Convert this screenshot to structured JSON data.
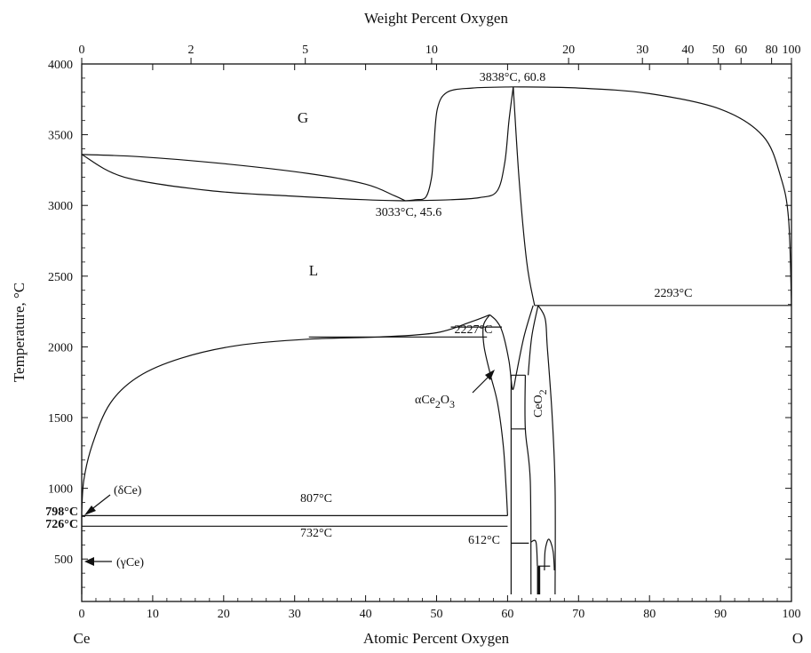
{
  "chart_data": {
    "type": "line",
    "title": "",
    "xlabel": "Atomic Percent Oxygen",
    "x2label": "Weight Percent Oxygen",
    "ylabel": "Temperature, °C",
    "xlim": [
      0,
      100
    ],
    "ylim": [
      200,
      4000
    ],
    "x_ticks": [
      "0",
      "10",
      "20",
      "30",
      "40",
      "50",
      "60",
      "70",
      "80",
      "90",
      "100"
    ],
    "y_ticks": [
      "500",
      "1000",
      "1500",
      "2000",
      "2500",
      "3000",
      "3500",
      "4000"
    ],
    "x2_ticks": [
      {
        "label": "0",
        "at": 0
      },
      {
        "label": "2",
        "at": 15.4
      },
      {
        "label": "5",
        "at": 31.5
      },
      {
        "label": "10",
        "at": 49.3
      },
      {
        "label": "20",
        "at": 68.6
      },
      {
        "label": "30",
        "at": 79.0
      },
      {
        "label": "40",
        "at": 85.4
      },
      {
        "label": "50",
        "at": 89.7
      },
      {
        "label": "60",
        "at": 92.9
      },
      {
        "label": "80",
        "at": 97.2
      },
      {
        "label": "100",
        "at": 100
      }
    ],
    "end_labels": {
      "left": "Ce",
      "right": "O"
    },
    "regions": [
      {
        "label": "G",
        "x": 30.5,
        "y": 3600
      },
      {
        "label": "L",
        "x": 32.5,
        "y": 2500
      }
    ],
    "annotations": {
      "max_point": "3838°C, 60.8",
      "min_point": "3033°C, 45.6",
      "peak_2227": "2227°C",
      "line_2293": "2293°C",
      "line_807": "807°C",
      "line_732": "732°C",
      "t_612": "612°C",
      "t_798": "798°C",
      "t_726": "726°C",
      "delta_ce": "(δCe)",
      "gamma_ce": "(γCe)",
      "ce2o3_prefix": "αCe",
      "ce2o3_sub1": "2",
      "ce2o3_mid": "O",
      "ce2o3_sub2": "3",
      "ceo2": "CeO",
      "ceo2_sub": "2"
    },
    "series": [
      {
        "values": [
          [
            0,
            3360
          ],
          [
            8,
            3345
          ],
          [
            20,
            3295
          ],
          [
            32,
            3225
          ],
          [
            40,
            3150
          ],
          [
            44,
            3070
          ],
          [
            45.6,
            3033
          ]
        ]
      },
      {
        "values": [
          [
            0,
            3360
          ],
          [
            6,
            3200
          ],
          [
            18,
            3105
          ],
          [
            30,
            3065
          ],
          [
            40,
            3040
          ],
          [
            45.6,
            3033
          ]
        ]
      },
      {
        "values": [
          [
            45.6,
            3033
          ],
          [
            52,
            3040
          ],
          [
            56,
            3055
          ],
          [
            58.5,
            3100
          ],
          [
            59.6,
            3300
          ],
          [
            60.2,
            3600
          ],
          [
            60.8,
            3838
          ]
        ]
      },
      {
        "values": [
          [
            45.6,
            3033
          ],
          [
            47,
            3040
          ],
          [
            48.5,
            3060
          ],
          [
            49.3,
            3200
          ],
          [
            49.6,
            3400
          ],
          [
            50.1,
            3680
          ],
          [
            51.5,
            3800
          ],
          [
            55,
            3830
          ],
          [
            60.8,
            3838
          ]
        ]
      },
      {
        "values": [
          [
            60.8,
            3838
          ],
          [
            70,
            3830
          ],
          [
            80,
            3790
          ],
          [
            90,
            3680
          ],
          [
            96,
            3490
          ],
          [
            98.5,
            3200
          ],
          [
            99.6,
            2900
          ],
          [
            100,
            2293
          ]
        ]
      },
      {
        "values": [
          [
            60.8,
            3838
          ],
          [
            61.6,
            3200
          ],
          [
            62.7,
            2600
          ],
          [
            63.8,
            2293
          ]
        ]
      },
      {
        "values": [
          [
            63.8,
            2293
          ],
          [
            100,
            2293
          ]
        ]
      },
      {
        "values": [
          [
            0,
            830
          ],
          [
            0.3,
            1060
          ],
          [
            1.5,
            1310
          ],
          [
            4,
            1600
          ],
          [
            8,
            1790
          ],
          [
            14,
            1920
          ],
          [
            22,
            2010
          ],
          [
            32,
            2055
          ],
          [
            42,
            2070
          ],
          [
            50,
            2100
          ],
          [
            55,
            2180
          ],
          [
            57.5,
            2227
          ]
        ]
      },
      {
        "values": [
          [
            57.5,
            2227
          ],
          [
            58.5,
            2180
          ],
          [
            59.3,
            2100
          ],
          [
            60.2,
            1900
          ],
          [
            60.7,
            1700
          ],
          [
            61.2,
            1800
          ]
        ]
      },
      {
        "values": [
          [
            57.5,
            2227
          ],
          [
            56.6,
            2150
          ],
          [
            56.7,
            2000
          ],
          [
            57.6,
            1800
          ],
          [
            58.6,
            1600
          ],
          [
            59.4,
            1300
          ],
          [
            59.8,
            1000
          ],
          [
            60,
            807
          ]
        ]
      },
      {
        "values": [
          [
            32,
            2070
          ],
          [
            57.1,
            2070
          ]
        ]
      },
      {
        "values": [
          [
            52,
            2140
          ],
          [
            59.2,
            2140
          ]
        ]
      },
      {
        "values": [
          [
            61.2,
            1800
          ],
          [
            62.3,
            2070
          ],
          [
            63.6,
            2293
          ]
        ]
      },
      {
        "values": [
          [
            64.3,
            2293
          ],
          [
            63.4,
            2070
          ],
          [
            62.9,
            1800
          ]
        ]
      },
      {
        "values": [
          [
            64.3,
            2293
          ],
          [
            65.3,
            2200
          ],
          [
            65.6,
            2000
          ],
          [
            66.3,
            1500
          ],
          [
            66.7,
            1000
          ],
          [
            66.7,
            250
          ]
        ]
      },
      {
        "values": [
          [
            0,
            807
          ],
          [
            60,
            807
          ]
        ]
      },
      {
        "values": [
          [
            0,
            732
          ],
          [
            60,
            732
          ]
        ]
      },
      {
        "values": [
          [
            60.5,
            1800
          ],
          [
            60.5,
            250
          ]
        ]
      },
      {
        "values": [
          [
            62.5,
            1800
          ],
          [
            62.5,
            1420
          ],
          [
            63.2,
            1050
          ],
          [
            63.3,
            250
          ]
        ]
      },
      {
        "values": [
          [
            60.5,
            1800
          ],
          [
            62.5,
            1800
          ]
        ]
      },
      {
        "values": [
          [
            60.5,
            1420
          ],
          [
            62.5,
            1420
          ]
        ]
      },
      {
        "values": [
          [
            60.5,
            612
          ],
          [
            63,
            612
          ]
        ]
      },
      {
        "values": [
          [
            63.3,
            620
          ],
          [
            64,
            620
          ],
          [
            64.2,
            450
          ]
        ]
      },
      {
        "values": [
          [
            64.3,
            450
          ],
          [
            66,
            450
          ]
        ]
      },
      {
        "values": [
          [
            65.2,
            420
          ],
          [
            65.3,
            560
          ],
          [
            65.8,
            640
          ],
          [
            66.4,
            560
          ],
          [
            66.6,
            420
          ]
        ]
      },
      {
        "values": [
          [
            0,
            250
          ],
          [
            0,
            830
          ]
        ]
      }
    ]
  }
}
